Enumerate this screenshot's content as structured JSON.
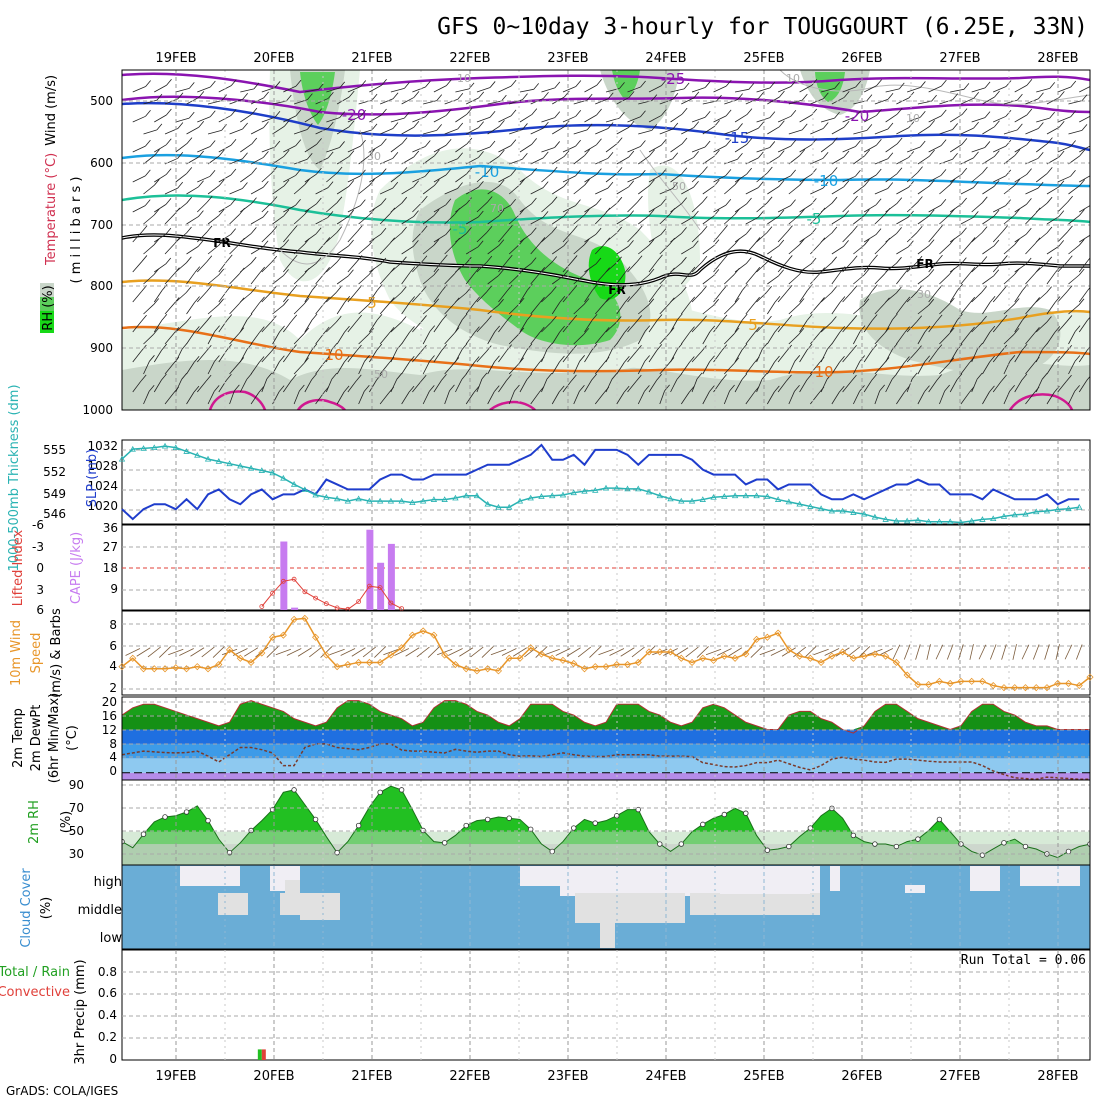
{
  "header": {
    "title": "GFS 0~10day 3-hourly for TOUGGOURT (6.25E, 33N)",
    "credit": "GrADS: COLA/IGES"
  },
  "colors": {
    "rh_light": "#e6f2e6",
    "rh_mid": "#c9d6c9",
    "rh_green": "#5ccf5c",
    "rh_bright": "#17d917",
    "slp": "#1f3dcc",
    "thickness": "#2ab3b3",
    "cape": "#c77cf0",
    "lifted": "#e0403a",
    "wind10": "#e8962a",
    "temp_max": "#1aa01a",
    "dewpt_band1": "#1f6fe0",
    "dewpt_band2": "#3d9be8",
    "dewpt_band3": "#8ec9f0",
    "below_zero": "#b58ce8",
    "rh2m": "#22c022",
    "cloud_blue": "#6aadd6",
    "cloud_white": "#f0eef4",
    "cloud_gray": "#e1e1e1"
  },
  "chart_data": [
    {
      "type": "heatmap",
      "panel": "upper-air",
      "title": "GFS 0~10day 3-hourly for TOUGGOURT (6.25E, 33N)",
      "x_categories": [
        "19FEB",
        "20FEB",
        "21FEB",
        "22FEB",
        "23FEB",
        "24FEB",
        "25FEB",
        "26FEB",
        "27FEB",
        "28FEB"
      ],
      "ylabel": "millibars",
      "y_ticks": [
        500,
        600,
        700,
        800,
        900,
        1000
      ],
      "ylim": [
        450,
        1000
      ],
      "legend_labels": [
        "RH (%)",
        "Temperature (°C)",
        "Wind (m/s)"
      ],
      "isotherm_labels": [
        "-25",
        "-20",
        "-15",
        "-10",
        "-5",
        "FR",
        "5",
        "10"
      ],
      "rh_contour_labels": [
        "10",
        "30",
        "50",
        "70"
      ],
      "freezing_level_label": "FR"
    },
    {
      "type": "line",
      "panel": "slp-thickness",
      "ylabel_left": "1000-500mb Thickness (dm)",
      "ylabel_right": "SLP (mb)",
      "y_ticks_left": [
        546,
        549,
        552,
        555
      ],
      "y_ticks_right": [
        1020,
        1024,
        1028,
        1032
      ],
      "ylim_slp": [
        1016,
        1033
      ],
      "ylim_thk": [
        545,
        556
      ],
      "series": [
        {
          "name": "SLP (mb)",
          "axis": "right",
          "values": [
            1019,
            1017,
            1019,
            1020,
            1020,
            1019,
            1021,
            1019,
            1022,
            1023,
            1021,
            1020,
            1022,
            1023,
            1021,
            1022,
            1022,
            1023,
            1022,
            1025,
            1024,
            1023,
            1023,
            1023,
            1025,
            1026,
            1026,
            1025,
            1025,
            1026,
            1026,
            1026,
            1026,
            1027,
            1028,
            1028,
            1028,
            1029,
            1030,
            1032,
            1029,
            1029,
            1030,
            1028,
            1031,
            1031,
            1031,
            1030,
            1028,
            1030,
            1030,
            1030,
            1030,
            1029,
            1027,
            1026,
            1026,
            1026,
            1024,
            1025,
            1025,
            1023,
            1024,
            1024,
            1024,
            1022,
            1021,
            1021,
            1022,
            1021,
            1022,
            1023,
            1024,
            1024,
            1025,
            1024,
            1024,
            1022,
            1022,
            1022,
            1021,
            1023,
            1022,
            1021,
            1021,
            1021,
            1022,
            1020,
            1021,
            1021
          ]
        },
        {
          "name": "1000-500mb Thickness (dm)",
          "axis": "left",
          "values": [
            553.5,
            554.8,
            554.9,
            555.0,
            555.2,
            555.0,
            554.5,
            554.0,
            553.5,
            553.2,
            552.9,
            552.6,
            552.3,
            552.0,
            551.7,
            551.0,
            550.2,
            549.5,
            548.8,
            548.5,
            548.3,
            548.0,
            548.3,
            548.0,
            548.0,
            548.0,
            548.0,
            547.8,
            548.0,
            548.2,
            548.2,
            548.4,
            548.7,
            548.7,
            547.6,
            547.2,
            547.2,
            548.0,
            548.4,
            548.6,
            548.7,
            548.8,
            549.1,
            549.3,
            549.4,
            549.7,
            549.7,
            549.6,
            549.6,
            549.2,
            548.7,
            548.3,
            548.0,
            548.0,
            548.2,
            548.5,
            548.6,
            548.7,
            548.7,
            548.7,
            548.6,
            548.2,
            547.9,
            547.6,
            547.3,
            547.0,
            546.7,
            546.7,
            546.5,
            546.3,
            545.9,
            545.6,
            545.4,
            545.4,
            545.5,
            545.3,
            545.3,
            545.3,
            545.2,
            545.4,
            545.6,
            545.7,
            546.0,
            546.2,
            546.3,
            546.6,
            546.7,
            546.9,
            547.0,
            547.2
          ]
        }
      ]
    },
    {
      "type": "bar",
      "panel": "cape-li",
      "ylabel_left": "Lifted Index",
      "ylabel_right": "CAPE (J/kg)",
      "y_ticks_li": [
        -6,
        -3,
        0,
        3,
        6
      ],
      "y_ticks_cape": [
        9,
        18,
        27,
        36
      ],
      "ylim_cape": [
        0,
        36
      ],
      "reference_line_li": 0,
      "cape_bars": [
        {
          "date": "20FEB 12z",
          "value": 29
        },
        {
          "date": "20FEB 15z",
          "value": 1
        },
        {
          "date": "21FEB 12z",
          "value": 34
        },
        {
          "date": "21FEB 15z",
          "value": 20
        },
        {
          "date": "21FEB 18z",
          "value": 28
        }
      ],
      "li_visible_segment": [
        {
          "date": "20FEB 06z",
          "value": 5.5
        },
        {
          "date": "20FEB 09z",
          "value": 3.6
        },
        {
          "date": "20FEB 12z",
          "value": 1.9
        },
        {
          "date": "20FEB 15z",
          "value": 1.6
        },
        {
          "date": "20FEB 18z",
          "value": 3.4
        },
        {
          "date": "20FEB 21z",
          "value": 4.3
        },
        {
          "date": "21FEB 00z",
          "value": 5.1
        },
        {
          "date": "21FEB 03z",
          "value": 5.7
        },
        {
          "date": "21FEB 06z",
          "value": 5.9
        },
        {
          "date": "21FEB 09z",
          "value": 4.8
        },
        {
          "date": "21FEB 12z",
          "value": 2.6
        },
        {
          "date": "21FEB 15z",
          "value": 2.8
        },
        {
          "date": "21FEB 18z",
          "value": 5.0
        },
        {
          "date": "21FEB 21z",
          "value": 5.8
        }
      ]
    },
    {
      "type": "line",
      "panel": "wind10m",
      "ylabel": "10m Wind Speed (m/s) & Barbs",
      "y_ticks": [
        2,
        4,
        6,
        8
      ],
      "ylim": [
        1.5,
        9.5
      ],
      "series": [
        {
          "name": "10m Wind Speed (m/s)",
          "values": [
            4.2,
            5.0,
            4.0,
            4.0,
            4.0,
            4.1,
            4.0,
            4.2,
            4.0,
            4.4,
            5.8,
            5.0,
            4.6,
            5.5,
            7.0,
            7.2,
            8.7,
            8.8,
            7.0,
            5.3,
            4.2,
            4.4,
            4.6,
            4.6,
            4.6,
            5.3,
            6.0,
            7.2,
            7.6,
            7.2,
            5.3,
            4.4,
            4.0,
            3.8,
            4.0,
            3.8,
            5.0,
            5.0,
            6.0,
            5.4,
            5.0,
            4.8,
            4.5,
            4.0,
            4.2,
            4.2,
            4.4,
            4.4,
            4.6,
            5.6,
            5.6,
            5.6,
            5.0,
            4.6,
            5.0,
            4.8,
            5.2,
            5.0,
            5.4,
            6.8,
            7.0,
            7.4,
            5.8,
            5.2,
            5.0,
            4.6,
            5.2,
            5.6,
            5.0,
            5.2,
            5.4,
            5.2,
            4.6,
            3.4,
            2.5,
            2.5,
            2.8,
            2.6,
            2.8,
            2.8,
            2.8,
            2.4,
            2.2,
            2.2,
            2.2,
            2.2,
            2.2,
            2.6,
            2.6,
            2.4,
            3.2
          ]
        }
      ]
    },
    {
      "type": "area",
      "panel": "temperature",
      "ylabel": "2m Temp / 2m DewPt (6hr Min/Max) (°C)",
      "y_ticks": [
        0,
        4,
        8,
        12,
        16,
        20
      ],
      "ylim": [
        -2,
        21
      ],
      "series": [
        {
          "name": "2m Temp",
          "values": [
            16,
            18,
            19,
            19,
            18,
            17,
            16,
            15,
            14,
            13,
            14,
            19,
            20,
            19,
            18,
            17,
            15,
            14,
            13,
            14,
            18,
            20,
            20,
            19,
            17,
            16,
            15,
            13,
            14,
            18,
            20,
            20,
            19,
            17,
            16,
            14,
            13,
            15,
            19,
            19,
            19,
            17,
            16,
            14,
            13,
            14,
            19,
            19,
            19,
            17,
            16,
            14,
            13,
            14,
            18,
            19,
            18,
            16,
            14,
            13,
            12,
            12,
            16,
            17,
            17,
            15,
            14,
            12,
            11,
            13,
            17,
            19,
            19,
            17,
            15,
            14,
            13,
            12,
            13,
            17,
            19,
            19,
            17,
            16,
            14,
            13,
            13,
            12,
            12,
            12,
            12
          ]
        },
        {
          "name": "2m DewPt",
          "values": [
            5,
            5.5,
            6,
            5.8,
            5.6,
            5.5,
            5.6,
            6,
            4.6,
            3,
            5,
            7,
            7,
            6.4,
            5.5,
            2,
            2,
            7,
            8,
            8,
            7,
            6.7,
            6.4,
            7,
            8,
            8,
            6.3,
            6,
            6,
            5.7,
            5.5,
            6.5,
            6,
            5.7,
            6,
            6,
            5,
            4.6,
            4.7,
            4.5,
            5,
            5.5,
            5,
            4.6,
            4.5,
            4.5,
            5,
            5,
            5,
            5,
            4.6,
            4.6,
            4.6,
            4.5,
            2.8,
            2.3,
            1.7,
            1.6,
            2,
            2.8,
            2.8,
            3.5,
            2.5,
            1.5,
            0.8,
            2,
            3.8,
            4.3,
            3.8,
            3.5,
            3,
            2.9,
            3.8,
            3.8,
            3.5,
            3.2,
            3,
            3,
            3,
            3,
            2,
            0.5,
            -0.5,
            -1.4,
            -1.6,
            -1.8,
            -1.2,
            -1.4,
            -1.6,
            -1.8,
            -1.8
          ]
        }
      ]
    },
    {
      "type": "area",
      "panel": "rh2m",
      "ylabel": "2m RH (%)",
      "y_ticks": [
        30,
        50,
        70,
        90
      ],
      "ylim": [
        23,
        92
      ],
      "series": [
        {
          "name": "2m RH",
          "values": [
            42,
            37,
            48,
            58,
            62,
            63,
            66,
            71,
            59,
            44,
            33,
            41,
            51,
            59,
            68,
            82,
            84,
            72,
            60,
            46,
            33,
            42,
            55,
            70,
            82,
            87,
            84,
            68,
            51,
            42,
            41,
            47,
            55,
            59,
            60,
            62,
            61,
            60,
            52,
            40,
            34,
            42,
            53,
            60,
            57,
            59,
            63,
            68,
            68,
            50,
            40,
            34,
            40,
            50,
            56,
            61,
            64,
            69,
            65,
            47,
            35,
            36,
            38,
            46,
            53,
            63,
            69,
            61,
            47,
            42,
            40,
            40,
            38,
            42,
            44,
            51,
            60,
            50,
            40,
            34,
            31,
            36,
            41,
            44,
            38,
            36,
            32,
            29,
            34,
            38,
            40
          ]
        }
      ]
    },
    {
      "type": "heatmap",
      "panel": "cloud-cover",
      "ylabel": "Cloud Cover (%)",
      "levels": [
        "high",
        "middle",
        "low"
      ]
    },
    {
      "type": "bar",
      "panel": "precip",
      "ylabel": "3hr Precip (mm)",
      "legend": [
        "Total / Rain",
        "Convective"
      ],
      "y_ticks": [
        0,
        0.2,
        0.4,
        0.6,
        0.8
      ],
      "ylim": [
        0,
        1
      ],
      "run_total_label": "Run Total = 0.06",
      "bars": [
        {
          "date": "20FEB 06z",
          "total": 0.06,
          "convective": 0.06
        }
      ]
    }
  ],
  "panels": {
    "upper": {
      "ylabel_rh": "RH (%)",
      "ylabel_temp": "Temperature (°C)",
      "ylabel_wind": "Wind (m/s)",
      "ylabel_mb": "( m i l l i b a r s )",
      "y_ticks": [
        "500",
        "600",
        "700",
        "800",
        "900",
        "1000"
      ]
    },
    "slp": {
      "ylabel_thk": "1000-500mb Thickness (dm)",
      "ylabel_slp": "SLP (mb)",
      "ticks_left": [
        "555",
        "552",
        "549",
        "546"
      ],
      "ticks_right": [
        "1032",
        "1028",
        "1024",
        "1020"
      ]
    },
    "cape": {
      "ylabel_li": "Lifted Index",
      "ylabel_cape": "CAPE (J/kg)",
      "ticks_left": [
        "-6",
        "-3",
        "0",
        "3",
        "6"
      ],
      "ticks_right": [
        "36",
        "27",
        "18",
        "9"
      ]
    },
    "wind": {
      "ylabel_1": "10m Wind",
      "ylabel_2": "Speed",
      "ylabel_3": "(m/s) & Barbs",
      "ticks": [
        "8",
        "6",
        "4",
        "2"
      ]
    },
    "temp": {
      "ylabel_1": "2m Temp",
      "ylabel_2": "2m DewPt",
      "ylabel_3": "(6hr Min/Max)",
      "ylabel_4": "(°C)",
      "ticks": [
        "20",
        "16",
        "12",
        "8",
        "4",
        "0"
      ]
    },
    "rh": {
      "ylabel_1": "2m RH",
      "ylabel_2": "(%)",
      "ticks": [
        "90",
        "70",
        "50",
        "30"
      ]
    },
    "cloud": {
      "ylabel_1": "Cloud Cover",
      "ylabel_2": "(%)",
      "levels": [
        "high",
        "middle",
        "low"
      ]
    },
    "precip": {
      "ylabel_1": "Total / Rain",
      "ylabel_2": "Convective",
      "ylabel_3": "3hr Precip (mm)",
      "ticks": [
        "0.8",
        "0.6",
        "0.4",
        "0.2",
        "0"
      ],
      "run_total": "Run Total = 0.06"
    }
  },
  "iso_labels": {
    "m25": "-25",
    "m20a": "-20",
    "m20b": "-20",
    "m15": "-15",
    "m10a": "-10",
    "m10b": "-10",
    "m5a": "-5",
    "m5b": "-5",
    "fr1": "FR",
    "fr2": "FR",
    "fr3": "FR",
    "p5a": "5",
    "p5b": "5",
    "p10a": "10",
    "p10b": "10",
    "rh10a": "10",
    "rh10b": "10",
    "rh10c": "10",
    "rh30": "30",
    "rh50a": "50",
    "rh50b": "50",
    "rh70": "70",
    "rh30b": "30"
  }
}
